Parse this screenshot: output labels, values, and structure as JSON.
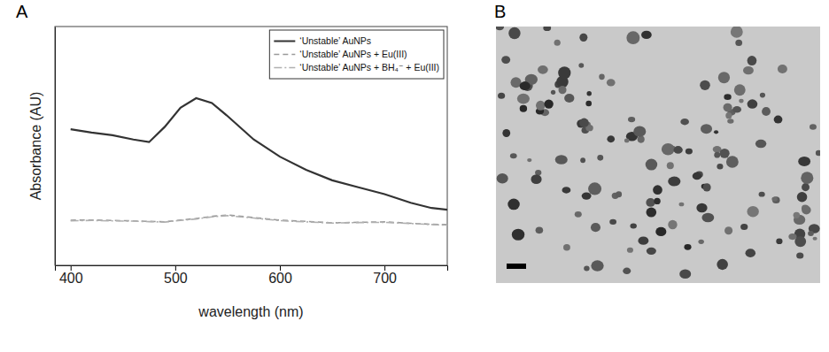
{
  "chart_data": [
    {
      "type": "line",
      "title": "A",
      "x_label": "wavelength (nm)",
      "y_label": "Absorbance (AU)",
      "x": [
        400,
        420,
        440,
        460,
        475,
        490,
        505,
        520,
        535,
        550,
        575,
        600,
        625,
        650,
        675,
        700,
        725,
        745,
        760
      ],
      "series": [
        {
          "name": "‘Unstable’ AuNPs",
          "color": "#333333",
          "line_style": "solid",
          "values": [
            0.57,
            0.556,
            0.545,
            0.527,
            0.516,
            0.58,
            0.66,
            0.7,
            0.68,
            0.625,
            0.527,
            0.455,
            0.4,
            0.356,
            0.327,
            0.298,
            0.262,
            0.24,
            0.233
          ]
        },
        {
          "name": "‘Unstable’ AuNPs + Eu(III)",
          "color": "#9a9a9a",
          "line_style": "dashed",
          "values": [
            0.189,
            0.19,
            0.188,
            0.186,
            0.184,
            0.182,
            0.19,
            0.196,
            0.205,
            0.211,
            0.2,
            0.189,
            0.184,
            0.178,
            0.18,
            0.182,
            0.176,
            0.172,
            0.17
          ]
        },
        {
          "name": "‘Unstable’ AuNPs + BH₄⁻ + Eu(III)",
          "color": "#b0b0b0",
          "line_style": "dashdot",
          "values": [
            0.186,
            0.188,
            0.186,
            0.185,
            0.183,
            0.181,
            0.188,
            0.194,
            0.203,
            0.208,
            0.198,
            0.187,
            0.182,
            0.177,
            0.179,
            0.18,
            0.175,
            0.171,
            0.168
          ]
        }
      ],
      "xlim": [
        385,
        760
      ],
      "xticks": [
        400,
        500,
        600,
        700
      ],
      "ylim": [
        0,
        1
      ],
      "tick_labels": "x",
      "grid": false,
      "legend": "top-right"
    },
    {
      "type": "image",
      "title": "B"
    }
  ]
}
